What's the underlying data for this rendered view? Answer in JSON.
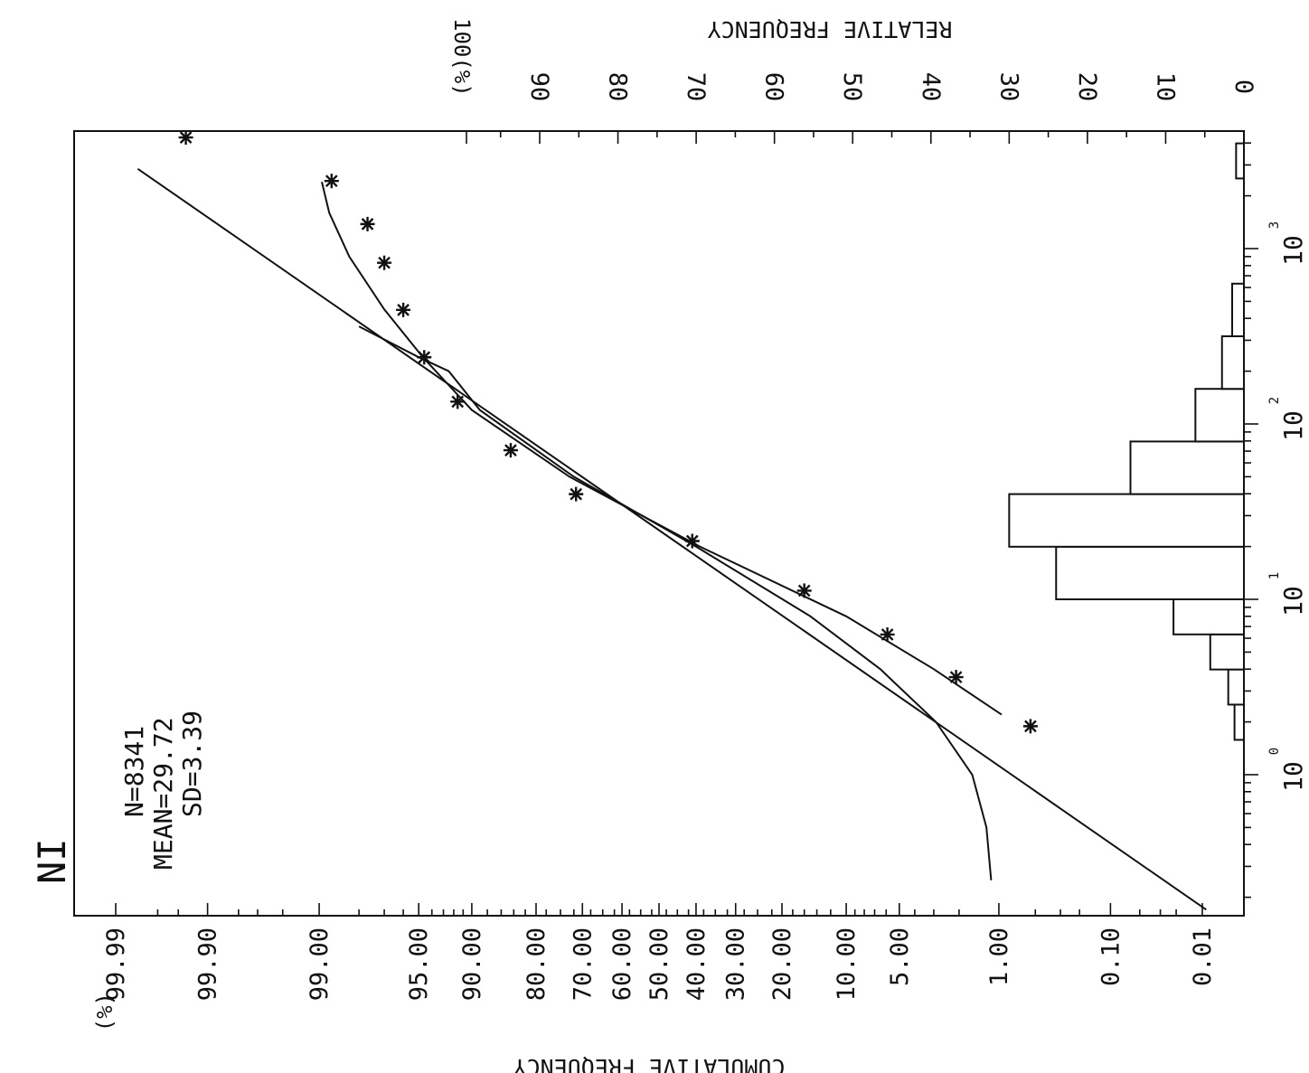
{
  "chart_data": {
    "type": "scatter",
    "title": "NI",
    "stats": [
      "N=8341",
      "MEAN=29.72",
      "SD=3.39"
    ],
    "xlabel_left": "CUMULATIVE FREQUENCY",
    "xlabel_right": "RELATIVE FREQUENCY",
    "cumulative_unit": "(%)",
    "relative_unit": "100(%)",
    "cumulative_ticks": [
      {
        "label": "99.99",
        "value": 99.99
      },
      {
        "label": "99.90",
        "value": 99.9
      },
      {
        "label": "99.00",
        "value": 99.0
      },
      {
        "label": "95.00",
        "value": 95.0
      },
      {
        "label": "90.00",
        "value": 90.0
      },
      {
        "label": "80.00",
        "value": 80.0
      },
      {
        "label": "70.00",
        "value": 70.0
      },
      {
        "label": "60.00",
        "value": 60.0
      },
      {
        "label": "50.00",
        "value": 50.0
      },
      {
        "label": "40.00",
        "value": 40.0
      },
      {
        "label": "30.00",
        "value": 30.0
      },
      {
        "label": "20.00",
        "value": 20.0
      },
      {
        "label": "10.00",
        "value": 10.0
      },
      {
        "label": "5.00",
        "value": 5.0
      },
      {
        "label": "1.00",
        "value": 1.0
      },
      {
        "label": "0.10",
        "value": 0.1
      },
      {
        "label": "0.01",
        "value": 0.01
      }
    ],
    "relative_ticks": [
      {
        "label": "0",
        "value": 0
      },
      {
        "label": "10",
        "value": 10
      },
      {
        "label": "20",
        "value": 20
      },
      {
        "label": "30",
        "value": 30
      },
      {
        "label": "40",
        "value": 40
      },
      {
        "label": "50",
        "value": 50
      },
      {
        "label": "60",
        "value": 60
      },
      {
        "label": "70",
        "value": 70
      },
      {
        "label": "80",
        "value": 80
      },
      {
        "label": "90",
        "value": 90
      }
    ],
    "log_ticks": [
      {
        "base": "10",
        "exp": "0",
        "value": 1
      },
      {
        "base": "10",
        "exp": "1",
        "value": 10
      },
      {
        "base": "10",
        "exp": "2",
        "value": 100
      },
      {
        "base": "10",
        "exp": "3",
        "value": 1000
      }
    ],
    "value_range_log": [
      0.17,
      3900
    ],
    "cumulative_points": [
      {
        "value": 1.89,
        "cum": 0.55
      },
      {
        "value": 3.6,
        "cum": 2.1
      },
      {
        "value": 6.3,
        "cum": 5.9
      },
      {
        "value": 11.2,
        "cum": 16.0
      },
      {
        "value": 21.5,
        "cum": 41.0
      },
      {
        "value": 39.8,
        "cum": 71.5
      },
      {
        "value": 70.8,
        "cum": 84.5
      },
      {
        "value": 134,
        "cum": 91.6
      },
      {
        "value": 240,
        "cum": 94.6
      },
      {
        "value": 447,
        "cum": 96.0
      },
      {
        "value": 830,
        "cum": 97.0
      },
      {
        "value": 1380,
        "cum": 97.7
      },
      {
        "value": 2430,
        "cum": 98.75
      },
      {
        "value": 4300,
        "cum": 99.94
      }
    ],
    "fit_line": [
      {
        "value": 0.17,
        "cum": 0.009
      },
      {
        "value": 2850,
        "cum": 99.982
      }
    ],
    "fit_curves": [
      [
        {
          "value": 0.25,
          "cum": 1.15
        },
        {
          "value": 0.5,
          "cum": 1.25
        },
        {
          "value": 1.0,
          "cum": 1.6
        },
        {
          "value": 2.0,
          "cum": 2.9
        },
        {
          "value": 4.0,
          "cum": 6.5
        },
        {
          "value": 8.0,
          "cum": 15.0
        },
        {
          "value": 20.0,
          "cum": 40.0
        },
        {
          "value": 50.0,
          "cum": 72.0
        },
        {
          "value": 120.0,
          "cum": 89.0
        },
        {
          "value": 200.0,
          "cum": 92.5
        },
        {
          "value": 240.0,
          "cum": 95.0
        },
        {
          "value": 360.0,
          "cum": 98.0
        }
      ],
      [
        {
          "value": 2.2,
          "cum": 0.95
        },
        {
          "value": 4.0,
          "cum": 3.0
        },
        {
          "value": 8.0,
          "cum": 10.0
        },
        {
          "value": 20.0,
          "cum": 39.0
        },
        {
          "value": 50.0,
          "cum": 73.0
        },
        {
          "value": 120.0,
          "cum": 90.0
        },
        {
          "value": 240.0,
          "cum": 94.7
        },
        {
          "value": 450.0,
          "cum": 97.0
        },
        {
          "value": 900.0,
          "cum": 98.3
        },
        {
          "value": 1600.0,
          "cum": 98.8
        },
        {
          "value": 2400.0,
          "cum": 98.95
        }
      ]
    ],
    "histogram": [
      {
        "from": 1.58,
        "to": 2.51,
        "rel": 1.2
      },
      {
        "from": 2.51,
        "to": 3.98,
        "rel": 2.0
      },
      {
        "from": 3.98,
        "to": 6.31,
        "rel": 4.3
      },
      {
        "from": 6.31,
        "to": 10.0,
        "rel": 9.0
      },
      {
        "from": 10.0,
        "to": 19.95,
        "rel": 24.0
      },
      {
        "from": 19.95,
        "to": 39.81,
        "rel": 30.0
      },
      {
        "from": 39.81,
        "to": 79.43,
        "rel": 14.5
      },
      {
        "from": 79.43,
        "to": 158.5,
        "rel": 6.2
      },
      {
        "from": 158.5,
        "to": 316.2,
        "rel": 2.8
      },
      {
        "from": 316.2,
        "to": 631.0,
        "rel": 1.5
      },
      {
        "from": 2511,
        "to": 3981,
        "rel": 1.0
      }
    ]
  }
}
